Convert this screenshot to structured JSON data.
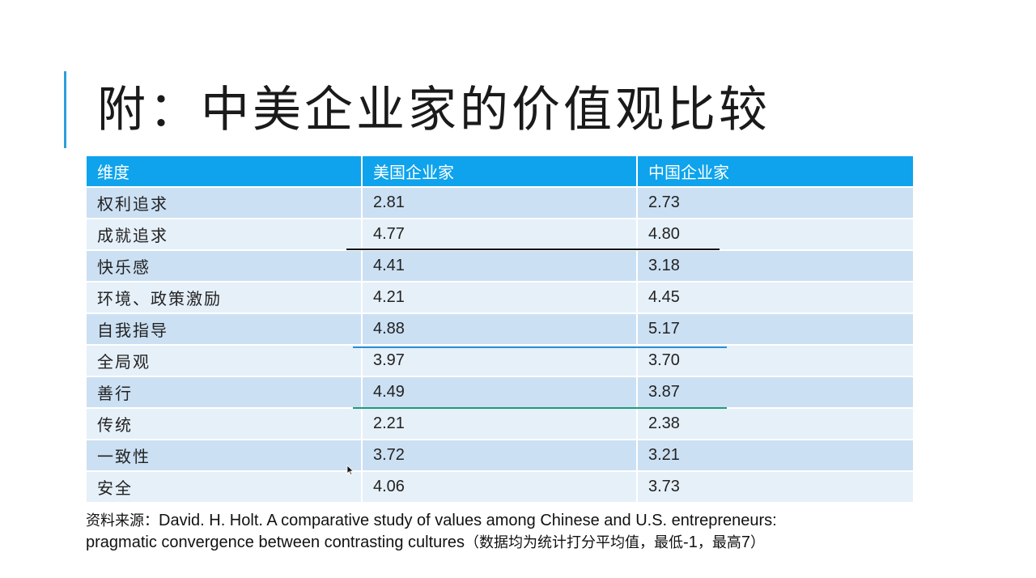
{
  "slide": {
    "title": "附：中美企业家的价值观比较"
  },
  "table": {
    "headers": [
      "维度",
      "美国企业家",
      "中国企业家"
    ],
    "rows": [
      {
        "dimension": "权利追求",
        "us": "2.81",
        "cn": "2.73"
      },
      {
        "dimension": "成就追求",
        "us": "4.77",
        "cn": "4.80"
      },
      {
        "dimension": "快乐感",
        "us": "4.41",
        "cn": "3.18"
      },
      {
        "dimension": "环境、政策激励",
        "us": "4.21",
        "cn": "4.45"
      },
      {
        "dimension": "自我指导",
        "us": "4.88",
        "cn": "5.17"
      },
      {
        "dimension": "全局观",
        "us": "3.97",
        "cn": "3.70"
      },
      {
        "dimension": "善行",
        "us": "4.49",
        "cn": "3.87"
      },
      {
        "dimension": "传统",
        "us": "2.21",
        "cn": "2.38"
      },
      {
        "dimension": "一致性",
        "us": "3.72",
        "cn": "3.21"
      },
      {
        "dimension": "安全",
        "us": "4.06",
        "cn": "3.73"
      }
    ]
  },
  "source": {
    "prefix": "资料来源：",
    "line1": "David. H. Holt. A comparative study of values among Chinese and U.S.  entrepreneurs:",
    "line2": "pragmatic convergence between contrasting cultures",
    "note_open": "（数据均为统计打分平均值，最低",
    "note_min": "-1",
    "note_sep": "，最高",
    "note_max": "7",
    "note_close": "）"
  },
  "colors": {
    "accent": "#2e9fd8",
    "header_bg": "#0ea3ec",
    "row_odd": "#cce0f3",
    "row_even": "#e6f0f9",
    "underline_black": "#111111",
    "underline_blue": "#2a8fd0",
    "underline_green": "#1f9b78"
  },
  "icons": [
    "mouse-cursor-icon"
  ]
}
